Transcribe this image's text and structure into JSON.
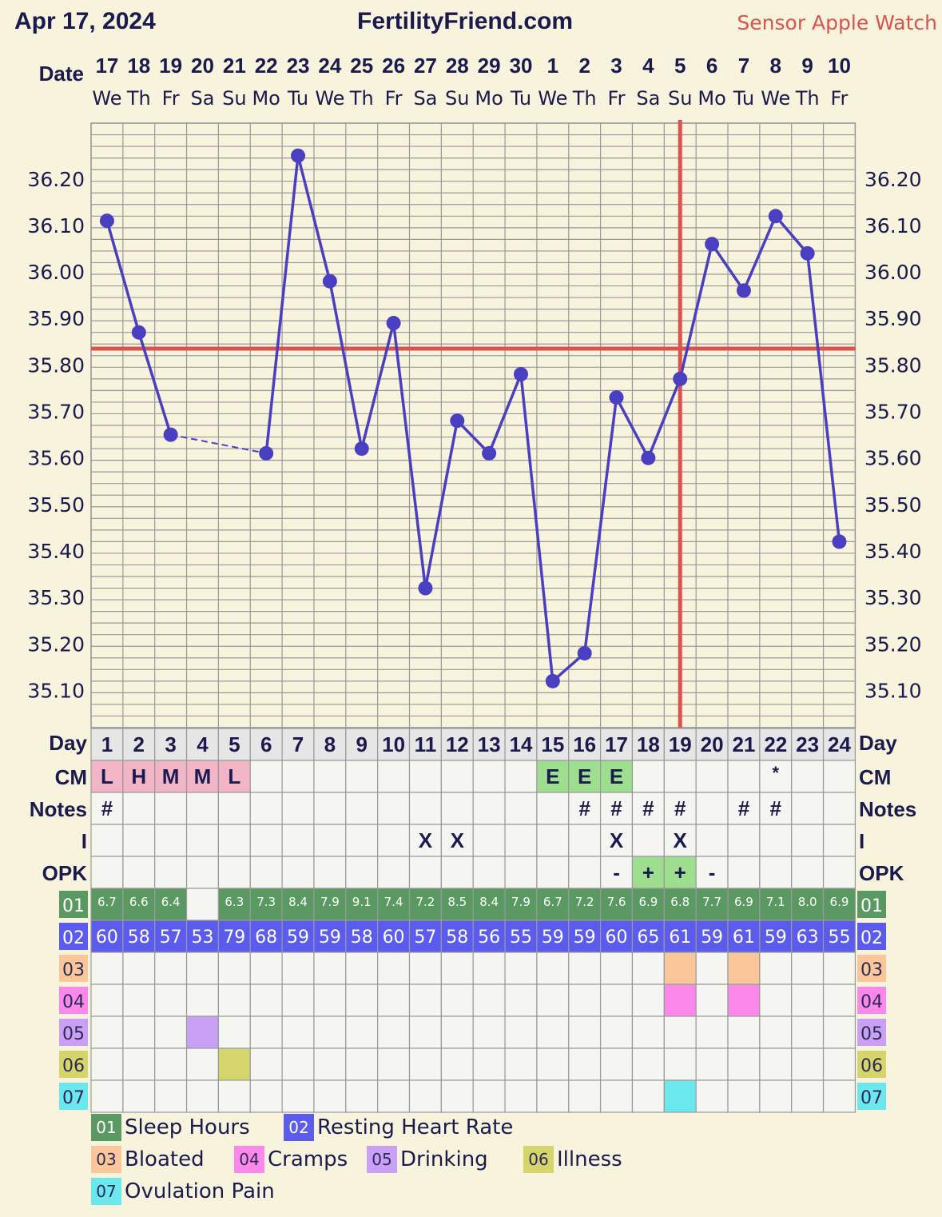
{
  "header": {
    "date": "Apr 17, 2024",
    "site": "FertilityFriend.com",
    "sensor": "Sensor Apple Watch"
  },
  "labels": {
    "date": "Date",
    "day": "Day",
    "cm": "CM",
    "notes": "Notes",
    "intercourse": "I",
    "opk": "OPK"
  },
  "dates": [
    "17",
    "18",
    "19",
    "20",
    "21",
    "22",
    "23",
    "24",
    "25",
    "26",
    "27",
    "28",
    "29",
    "30",
    "1",
    "2",
    "3",
    "4",
    "5",
    "6",
    "7",
    "8",
    "9",
    "10"
  ],
  "weekdays": [
    "We",
    "Th",
    "Fr",
    "Sa",
    "Su",
    "Mo",
    "Tu",
    "We",
    "Th",
    "Fr",
    "Sa",
    "Su",
    "Mo",
    "Tu",
    "We",
    "Th",
    "Fr",
    "Sa",
    "Su",
    "Mo",
    "Tu",
    "We",
    "Th",
    "Fr"
  ],
  "cycle_days": [
    "1",
    "2",
    "3",
    "4",
    "5",
    "6",
    "7",
    "8",
    "9",
    "10",
    "11",
    "12",
    "13",
    "14",
    "15",
    "16",
    "17",
    "18",
    "19",
    "20",
    "21",
    "22",
    "23",
    "24"
  ],
  "colors": {
    "background": "#f7f3dc",
    "line": "#4a3fc0",
    "coverline": "#d9534f",
    "grid": "#999999",
    "cm_period": "#f1b5c6",
    "cm_egg": "#9ddf8f",
    "sleep": "#5a9a62",
    "rhr": "#5b5bee",
    "bloated": "#fbc69a",
    "cramps": "#fb88ea",
    "drinking": "#c9a0f5",
    "illness": "#d6d56b",
    "ovulation_pain": "#6be8ee",
    "cell_bg": "#f5f5f2",
    "day_bg": "#e6e6e6"
  },
  "chart_data": {
    "type": "line",
    "x": [
      1,
      2,
      3,
      4,
      5,
      6,
      7,
      8,
      9,
      10,
      11,
      12,
      13,
      14,
      15,
      16,
      17,
      18,
      19,
      20,
      21,
      22,
      23,
      24
    ],
    "y": [
      36.11,
      35.87,
      35.65,
      null,
      null,
      35.61,
      36.25,
      35.98,
      35.62,
      35.89,
      35.32,
      35.68,
      35.61,
      35.78,
      35.12,
      35.18,
      35.73,
      35.6,
      35.77,
      36.06,
      35.96,
      36.12,
      36.04,
      35.42
    ],
    "yticks": [
      "36.20",
      "36.10",
      "36.00",
      "35.90",
      "35.80",
      "35.70",
      "35.60",
      "35.50",
      "35.40",
      "35.30",
      "35.20",
      "35.10"
    ],
    "ylim": [
      35.02,
      36.32
    ],
    "coverline": 35.835,
    "ovulation_day": 19,
    "gap_dashed": [
      3,
      6
    ],
    "grid": true
  },
  "cm": [
    "L",
    "H",
    "M",
    "M",
    "L",
    "",
    "",
    "",
    "",
    "",
    "",
    "",
    "",
    "",
    "E",
    "E",
    "E",
    "",
    "",
    "",
    "",
    "*",
    "",
    ""
  ],
  "notes": [
    "#",
    "",
    "",
    "",
    "",
    "",
    "",
    "",
    "",
    "",
    "",
    "",
    "",
    "",
    "",
    "#",
    "#",
    "#",
    "#",
    "",
    "#",
    "#",
    "",
    ""
  ],
  "intercourse": [
    "",
    "",
    "",
    "",
    "",
    "",
    "",
    "",
    "",
    "",
    "X",
    "X",
    "",
    "",
    "",
    "",
    "X",
    "",
    "X",
    "",
    "",
    "",
    "",
    ""
  ],
  "opk": [
    "",
    "",
    "",
    "",
    "",
    "",
    "",
    "",
    "",
    "",
    "",
    "",
    "",
    "",
    "",
    "",
    "-",
    "+",
    "+",
    "-",
    "",
    "",
    "",
    ""
  ],
  "sleep": [
    "6.7",
    "6.6",
    "6.4",
    "",
    "6.3",
    "7.3",
    "8.4",
    "7.9",
    "9.1",
    "7.4",
    "7.2",
    "8.5",
    "8.4",
    "7.9",
    "6.7",
    "7.2",
    "7.6",
    "6.9",
    "6.8",
    "7.7",
    "6.9",
    "7.1",
    "8.0",
    "6.9"
  ],
  "rhr": [
    "60",
    "58",
    "57",
    "53",
    "79",
    "68",
    "59",
    "59",
    "58",
    "60",
    "57",
    "58",
    "56",
    "55",
    "59",
    "59",
    "60",
    "65",
    "61",
    "59",
    "61",
    "59",
    "63",
    "55"
  ],
  "symptom_rows": [
    {
      "code": "03",
      "days": [
        19,
        21
      ]
    },
    {
      "code": "04",
      "days": [
        19,
        21
      ]
    },
    {
      "code": "05",
      "days": [
        4
      ]
    },
    {
      "code": "06",
      "days": [
        5
      ]
    },
    {
      "code": "07",
      "days": [
        19
      ]
    }
  ],
  "legend": [
    {
      "code": "01",
      "label": "Sleep Hours"
    },
    {
      "code": "02",
      "label": "Resting Heart Rate"
    },
    {
      "code": "03",
      "label": "Bloated"
    },
    {
      "code": "04",
      "label": "Cramps"
    },
    {
      "code": "05",
      "label": "Drinking"
    },
    {
      "code": "06",
      "label": "Illness"
    },
    {
      "code": "07",
      "label": "Ovulation Pain"
    }
  ]
}
